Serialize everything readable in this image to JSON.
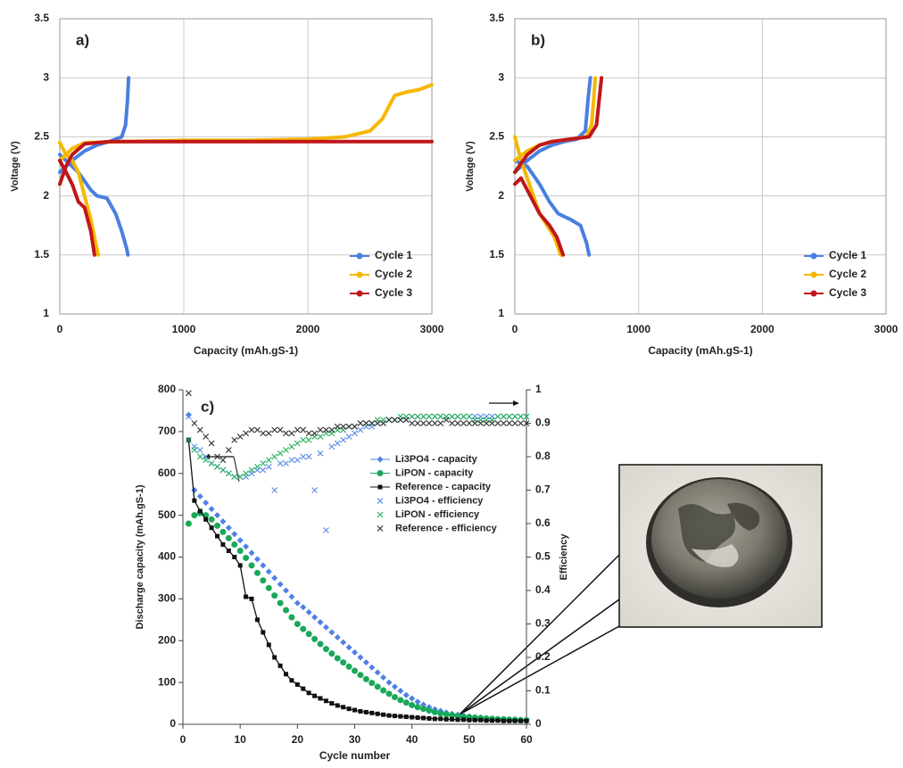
{
  "chart_data": [
    {
      "type": "line",
      "annotation": "a)",
      "xlabel": "Capacity (mAh.gS-1)",
      "ylabel": "Voltage (V)",
      "xlim": [
        0,
        3000
      ],
      "xticks": [
        0,
        1000,
        2000,
        3000
      ],
      "ylim": [
        1,
        3.5
      ],
      "yticks": [
        1,
        1.5,
        2,
        2.5,
        3,
        3.5
      ],
      "grid": true,
      "legend": "lower right",
      "series": [
        {
          "name": "Cycle 1",
          "color": "#4a7fe0",
          "x": [
            0,
            50,
            150,
            250,
            300,
            380,
            450,
            500,
            540,
            550,
            null,
            0,
            100,
            200,
            300,
            400,
            500,
            530,
            545,
            555
          ],
          "values": [
            2.35,
            2.3,
            2.2,
            2.05,
            2.0,
            1.98,
            1.85,
            1.7,
            1.55,
            1.5,
            null,
            2.2,
            2.3,
            2.38,
            2.43,
            2.46,
            2.5,
            2.6,
            2.8,
            3.0
          ]
        },
        {
          "name": "Cycle 2",
          "color": "#f5b800",
          "x": [
            0,
            50,
            100,
            150,
            200,
            250,
            290,
            310,
            null,
            0,
            100,
            200,
            500,
            1000,
            1500,
            2000,
            2300,
            2500,
            2600,
            2700,
            2800,
            2900,
            3000
          ],
          "values": [
            2.45,
            2.35,
            2.3,
            2.2,
            2.0,
            1.8,
            1.6,
            1.5,
            null,
            2.3,
            2.4,
            2.45,
            2.46,
            2.47,
            2.47,
            2.48,
            2.5,
            2.55,
            2.65,
            2.85,
            2.88,
            2.9,
            2.94
          ]
        },
        {
          "name": "Cycle 3",
          "color": "#c0161a",
          "x": [
            0,
            50,
            100,
            150,
            200,
            250,
            280,
            null,
            0,
            50,
            100,
            200,
            400,
            1000,
            2000,
            3000
          ],
          "values": [
            2.3,
            2.2,
            2.1,
            1.95,
            1.9,
            1.7,
            1.5,
            null,
            2.1,
            2.25,
            2.35,
            2.44,
            2.46,
            2.46,
            2.46,
            2.46
          ]
        }
      ]
    },
    {
      "type": "line",
      "annotation": "b)",
      "xlabel": "Capacity (mAh.gS-1)",
      "ylabel": "Voltage (V)",
      "xlim": [
        0,
        3000
      ],
      "xticks": [
        0,
        1000,
        2000,
        3000
      ],
      "ylim": [
        1,
        3.5
      ],
      "yticks": [
        1,
        1.5,
        2,
        2.5,
        3,
        3.5
      ],
      "grid": true,
      "legend": "lower right",
      "series": [
        {
          "name": "Cycle 1",
          "color": "#4a7fe0",
          "x": [
            0,
            100,
            200,
            280,
            350,
            450,
            530,
            580,
            600,
            null,
            0,
            100,
            200,
            300,
            400,
            500,
            570,
            590,
            610
          ],
          "values": [
            2.3,
            2.25,
            2.1,
            1.95,
            1.85,
            1.8,
            1.75,
            1.6,
            1.5,
            null,
            2.2,
            2.3,
            2.38,
            2.43,
            2.46,
            2.48,
            2.55,
            2.8,
            3.0
          ]
        },
        {
          "name": "Cycle 2",
          "color": "#f5b800",
          "x": [
            0,
            50,
            100,
            150,
            200,
            260,
            320,
            370,
            null,
            0,
            100,
            200,
            300,
            450,
            580,
            620,
            640,
            650
          ],
          "values": [
            2.5,
            2.3,
            2.15,
            2.0,
            1.85,
            1.75,
            1.65,
            1.5,
            null,
            2.3,
            2.38,
            2.43,
            2.46,
            2.48,
            2.5,
            2.6,
            2.85,
            3.0
          ]
        },
        {
          "name": "Cycle 3",
          "color": "#c0161a",
          "x": [
            0,
            50,
            100,
            150,
            200,
            280,
            340,
            390,
            null,
            0,
            100,
            200,
            300,
            450,
            600,
            660,
            685,
            700
          ],
          "values": [
            2.1,
            2.15,
            2.05,
            1.95,
            1.85,
            1.75,
            1.65,
            1.5,
            null,
            2.2,
            2.35,
            2.43,
            2.46,
            2.48,
            2.5,
            2.6,
            2.85,
            3.0
          ]
        }
      ]
    },
    {
      "type": "scatter",
      "annotation": "c)",
      "xlabel": "Cycle number",
      "ylabel": "Discharge capacity (mAh.gS-1)",
      "y2label": "Efficiency",
      "xlim": [
        0,
        60
      ],
      "xticks": [
        0,
        10,
        20,
        30,
        40,
        50,
        60
      ],
      "ylim": [
        0,
        800
      ],
      "yticks": [
        0,
        100,
        200,
        300,
        400,
        500,
        600,
        700,
        800
      ],
      "y2lim": [
        0,
        1
      ],
      "y2ticks": [
        0,
        0.1,
        0.2,
        0.3,
        0.4,
        0.5,
        0.6,
        0.7,
        0.8,
        0.9,
        1
      ],
      "grid": false,
      "legend": "upper right",
      "x": [
        1,
        2,
        3,
        4,
        5,
        6,
        7,
        8,
        9,
        10,
        11,
        12,
        13,
        14,
        15,
        16,
        17,
        18,
        19,
        20,
        21,
        22,
        23,
        24,
        25,
        26,
        27,
        28,
        29,
        30,
        31,
        32,
        33,
        34,
        35,
        36,
        37,
        38,
        39,
        40,
        41,
        42,
        43,
        44,
        45,
        46,
        47,
        48,
        49,
        50,
        51,
        52,
        53,
        54,
        55,
        56,
        57,
        58,
        59,
        60
      ],
      "series": [
        {
          "name": "Li3PO4 - capacity",
          "color": "#4f7fe8",
          "marker": "diamond",
          "line": false,
          "values": [
            740,
            560,
            545,
            530,
            515,
            500,
            485,
            470,
            455,
            440,
            425,
            410,
            395,
            380,
            365,
            350,
            335,
            320,
            305,
            290,
            280,
            268,
            256,
            244,
            232,
            220,
            208,
            196,
            184,
            172,
            160,
            148,
            136,
            124,
            112,
            100,
            90,
            80,
            70,
            62,
            54,
            47,
            41,
            36,
            32,
            28,
            25,
            23,
            21,
            19,
            17,
            16,
            15,
            14,
            13,
            12,
            12,
            11,
            11,
            10
          ]
        },
        {
          "name": "LiPON - capacity",
          "color": "#1aa85a",
          "marker": "circle",
          "line": false,
          "values": [
            480,
            500,
            505,
            500,
            490,
            475,
            460,
            445,
            430,
            415,
            398,
            380,
            362,
            344,
            326,
            308,
            290,
            273,
            256,
            240,
            228,
            216,
            204,
            192,
            180,
            169,
            158,
            148,
            138,
            128,
            118,
            108,
            99,
            90,
            81,
            73,
            65,
            58,
            52,
            46,
            41,
            37,
            33,
            29,
            26,
            24,
            22,
            20,
            18,
            17,
            16,
            15,
            14,
            13,
            12,
            12,
            11,
            11,
            10,
            10
          ]
        },
        {
          "name": "Reference - capacity",
          "color": "#111111",
          "marker": "square",
          "line": true,
          "values": [
            680,
            535,
            510,
            490,
            470,
            450,
            430,
            415,
            400,
            380,
            305,
            300,
            250,
            220,
            190,
            160,
            140,
            120,
            105,
            95,
            85,
            75,
            68,
            62,
            56,
            50,
            45,
            41,
            37,
            34,
            31,
            29,
            27,
            25,
            23,
            21,
            20,
            19,
            18,
            17,
            16,
            15,
            14,
            13,
            13,
            12,
            12,
            11,
            11,
            10,
            10,
            10,
            9,
            9,
            9,
            8,
            8,
            8,
            8,
            8
          ]
        },
        {
          "name": "Li3PO4 - efficiency",
          "color": "#5b8de8",
          "marker": "x",
          "line": false,
          "axis": "y2",
          "values": [
            0.92,
            0.83,
            0.82,
            0.8,
            0.78,
            0.77,
            0.76,
            0.75,
            0.74,
            0.74,
            0.74,
            0.75,
            0.76,
            0.76,
            0.77,
            0.7,
            0.78,
            0.78,
            0.79,
            0.79,
            0.8,
            0.8,
            0.7,
            0.81,
            0.58,
            0.83,
            0.84,
            0.85,
            0.86,
            0.87,
            0.88,
            0.89,
            0.89,
            0.9,
            0.9,
            0.91,
            0.91,
            0.91,
            0.91,
            0.92,
            0.92,
            0.92,
            0.92,
            0.92,
            0.92,
            0.92,
            0.92,
            0.92,
            0.92,
            0.92,
            0.92,
            0.92,
            0.92,
            0.92,
            0.92,
            0.92,
            0.92,
            0.92,
            0.92,
            0.92
          ]
        },
        {
          "name": "LiPON - efficiency",
          "color": "#2bb060",
          "marker": "x",
          "line": false,
          "axis": "y2",
          "values": [
            0.85,
            0.82,
            0.8,
            0.79,
            0.78,
            0.77,
            0.76,
            0.75,
            0.74,
            0.74,
            0.75,
            0.76,
            0.77,
            0.78,
            0.79,
            0.8,
            0.81,
            0.82,
            0.83,
            0.84,
            0.85,
            0.85,
            0.86,
            0.86,
            0.87,
            0.87,
            0.88,
            0.88,
            0.89,
            0.89,
            0.9,
            0.9,
            0.9,
            0.91,
            0.91,
            0.91,
            0.91,
            0.92,
            0.92,
            0.92,
            0.92,
            0.92,
            0.92,
            0.92,
            0.92,
            0.92,
            0.92,
            0.92,
            0.92,
            0.92,
            0.91,
            0.91,
            0.91,
            0.91,
            0.92,
            0.92,
            0.92,
            0.92,
            0.92,
            0.92
          ]
        },
        {
          "name": "Reference - efficiency",
          "color": "#333333",
          "marker": "x",
          "line": false,
          "axis": "y2",
          "values": [
            0.99,
            0.9,
            0.88,
            0.86,
            0.84,
            0.8,
            0.79,
            0.82,
            0.85,
            0.86,
            0.87,
            0.88,
            0.88,
            0.87,
            0.87,
            0.88,
            0.88,
            0.87,
            0.87,
            0.88,
            0.88,
            0.87,
            0.87,
            0.88,
            0.88,
            0.88,
            0.89,
            0.89,
            0.89,
            0.89,
            0.9,
            0.9,
            0.9,
            0.9,
            0.9,
            0.91,
            0.91,
            0.91,
            0.91,
            0.9,
            0.9,
            0.9,
            0.9,
            0.9,
            0.9,
            0.91,
            0.9,
            0.9,
            0.9,
            0.9,
            0.9,
            0.9,
            0.9,
            0.9,
            0.9,
            0.9,
            0.9,
            0.9,
            0.9,
            0.9
          ]
        }
      ]
    }
  ]
}
